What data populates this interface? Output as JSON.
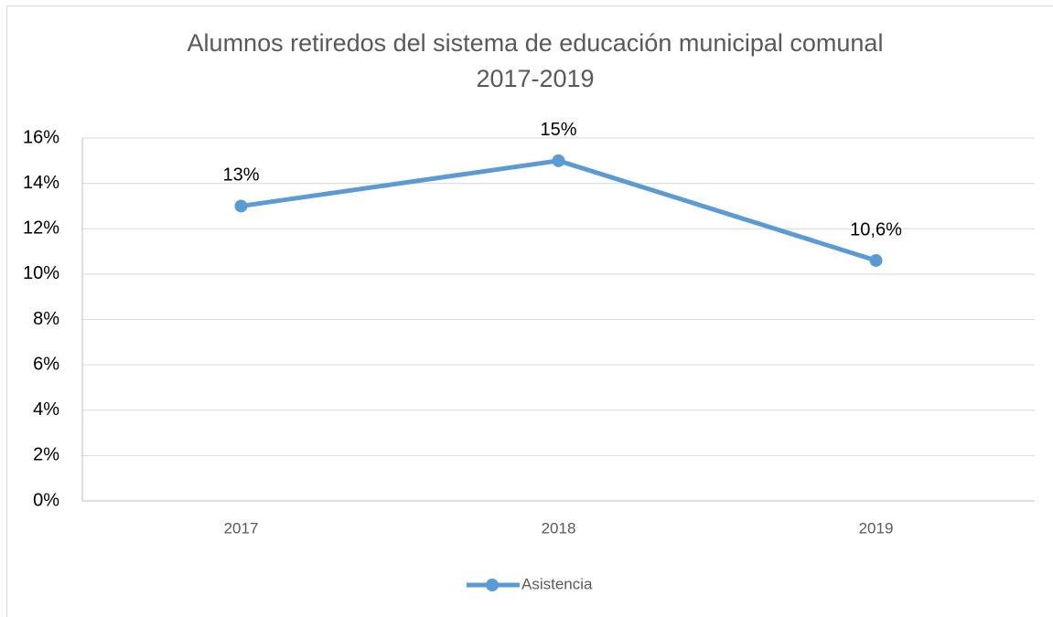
{
  "chart_data": {
    "type": "line",
    "title": [
      "Alumnos retiredos del sistema de educación municipal comunal",
      "2017-2019"
    ],
    "categories": [
      "2017",
      "2018",
      "2019"
    ],
    "series": [
      {
        "name": "Asistencia",
        "color": "#5b9bd5",
        "values": [
          13,
          15,
          10.6
        ],
        "value_labels": [
          "13%",
          "15%",
          "10,6%"
        ]
      }
    ],
    "ylim": [
      0,
      16
    ],
    "yticks": [
      {
        "value": 0,
        "label": "0%"
      },
      {
        "value": 2,
        "label": "2%"
      },
      {
        "value": 4,
        "label": "4%"
      },
      {
        "value": 6,
        "label": "6%"
      },
      {
        "value": 8,
        "label": "8%"
      },
      {
        "value": 10,
        "label": "10%"
      },
      {
        "value": 12,
        "label": "12%"
      },
      {
        "value": 14,
        "label": "14%"
      },
      {
        "value": 16,
        "label": "16%"
      }
    ],
    "grid": true,
    "legend": "bottom"
  }
}
